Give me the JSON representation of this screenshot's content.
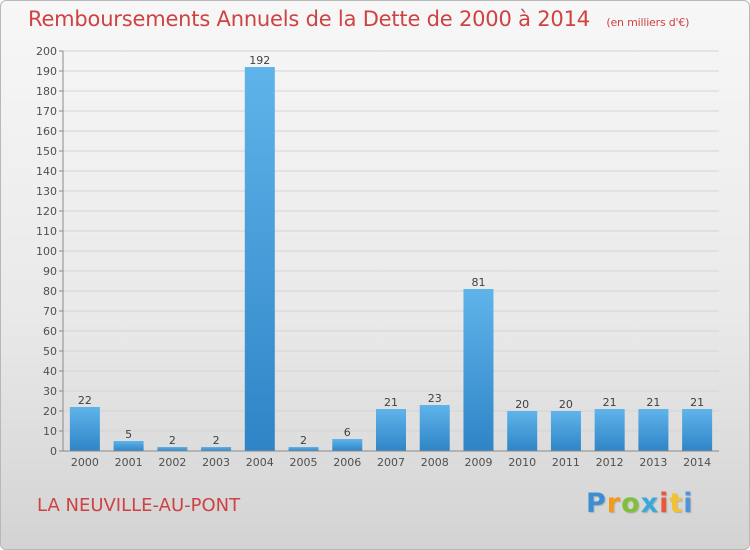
{
  "page": {
    "title": "Remboursements Annuels de la Dette de 2000 à 2014",
    "unit": "(en milliers d'€)",
    "location": "LA NEUVILLE-AU-PONT",
    "brand_chars": [
      "P",
      "r",
      "o",
      "x",
      "i",
      "t",
      "i"
    ]
  },
  "chart_data": {
    "type": "bar",
    "title": "Remboursements Annuels de la Dette de 2000 à 2014",
    "unit_label": "(en milliers d'€)",
    "categories": [
      "2000",
      "2001",
      "2002",
      "2003",
      "2004",
      "2005",
      "2006",
      "2007",
      "2008",
      "2009",
      "2010",
      "2011",
      "2012",
      "2013",
      "2014"
    ],
    "values": [
      22,
      5,
      2,
      2,
      192,
      2,
      6,
      21,
      23,
      81,
      20,
      20,
      21,
      21,
      21
    ],
    "ylim": [
      0,
      200
    ],
    "yticks": [
      0,
      10,
      20,
      30,
      40,
      50,
      60,
      70,
      80,
      90,
      100,
      110,
      120,
      130,
      140,
      150,
      160,
      170,
      180,
      190,
      200
    ],
    "grid": true,
    "colors": {
      "bar_top": "#5fb4ea",
      "bar_bottom": "#2f84c7",
      "grid": "#d4d4d4",
      "axis": "#8a8a8a",
      "text": "#505050",
      "title": "#cf4242"
    }
  }
}
